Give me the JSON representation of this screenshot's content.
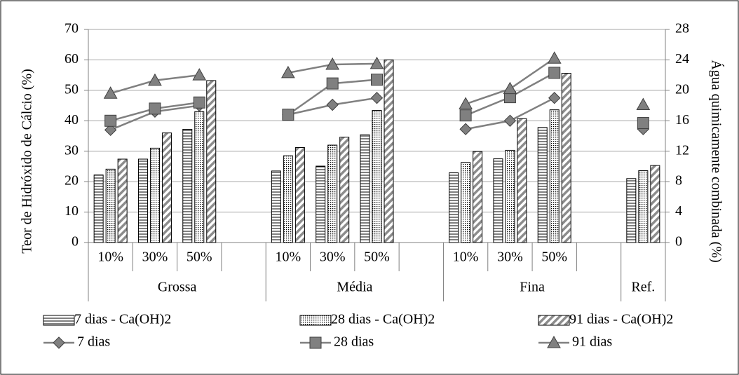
{
  "chart_data": {
    "type": "bar",
    "y_title": "Teor  de Hidróxido de Cálcio (%)",
    "y2_title": "Água quimicamente combinada (%)",
    "categories": [
      "10%",
      "30%",
      "50%",
      null,
      "10%",
      "30%",
      "50%",
      null,
      "10%",
      "30%",
      "50%",
      null,
      null
    ],
    "groups": [
      {
        "name": "Grossa",
        "size": 4
      },
      {
        "name": "Média",
        "size": 4
      },
      {
        "name": "Fina",
        "size": 4
      },
      {
        "name": "Ref.",
        "size": 1
      }
    ],
    "ylim": [
      0,
      70
    ],
    "yticks": [
      0,
      10,
      20,
      30,
      40,
      50,
      60,
      70
    ],
    "y2lim": [
      0,
      28
    ],
    "y2ticks": [
      0,
      4,
      8,
      12,
      16,
      20,
      24,
      28
    ],
    "grid": true,
    "series": [
      {
        "name": "7 dias - Ca(OH)2",
        "type": "bar",
        "pattern": "horizontal",
        "color": "#000000",
        "values": [
          22.2,
          27.4,
          37.2,
          null,
          23.5,
          25.1,
          35.4,
          null,
          22.9,
          27.5,
          37.8,
          null,
          21.0
        ]
      },
      {
        "name": "28 dias - Ca(OH)2",
        "type": "bar",
        "pattern": "dots",
        "color": "#000000",
        "values": [
          24.1,
          31.0,
          43.0,
          null,
          28.5,
          32.0,
          43.4,
          null,
          26.3,
          30.3,
          43.6,
          null,
          23.6
        ]
      },
      {
        "name": "91 dias - Ca(OH)2",
        "type": "bar",
        "pattern": "diagonal",
        "color": "#000000",
        "values": [
          27.4,
          36.0,
          53.2,
          null,
          31.2,
          34.6,
          60.0,
          null,
          29.9,
          40.7,
          55.6,
          null,
          25.3
        ]
      },
      {
        "name": "7 dias",
        "type": "line",
        "axis": "y2",
        "marker": "diamond",
        "color": "#808080",
        "values": [
          14.8,
          17.2,
          18.0,
          null,
          16.8,
          18.1,
          19.0,
          null,
          14.9,
          16.0,
          19.0,
          null,
          14.9
        ]
      },
      {
        "name": "28 dias",
        "type": "line",
        "axis": "y2",
        "marker": "square",
        "color": "#808080",
        "values": [
          16.0,
          17.6,
          18.4,
          null,
          16.8,
          20.9,
          21.4,
          null,
          16.7,
          19.1,
          22.3,
          null,
          15.7
        ]
      },
      {
        "name": "91 dias",
        "type": "line",
        "axis": "y2",
        "marker": "triangle",
        "color": "#808080",
        "values": [
          19.6,
          21.3,
          22.0,
          null,
          22.3,
          23.4,
          23.5,
          null,
          18.2,
          20.2,
          24.2,
          null,
          18.1
        ]
      }
    ]
  }
}
